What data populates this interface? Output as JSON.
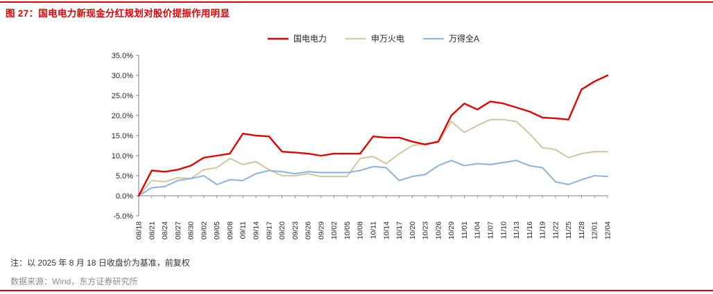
{
  "header": {
    "figure_label": "图 27"
  },
  "footer": {
    "note": "注：以 2025 年 8 月 18 日收盘价为基准，前复权",
    "source": "数据来源：Wind，东方证券研究所"
  },
  "colors": {
    "accent_red": "#e60000",
    "axis": "#7f7f7f",
    "tick_text": "#262626",
    "note_text": "#333333",
    "source_text": "#8c8c8c"
  },
  "chart_data": {
    "type": "line",
    "title": "图 27：国电电力新现金分红规划对股价提振作用明显",
    "xlabel": "",
    "ylabel": "",
    "ylim": [
      -5,
      35
    ],
    "ytick_step": 5,
    "ytick_format": "percent_1dp",
    "grid": false,
    "legend_position": "top",
    "categories": [
      "08/18",
      "08/21",
      "08/24",
      "08/27",
      "08/30",
      "09/02",
      "09/05",
      "09/08",
      "09/11",
      "09/14",
      "09/17",
      "09/20",
      "09/23",
      "09/26",
      "09/29",
      "10/02",
      "10/05",
      "10/08",
      "10/11",
      "10/14",
      "10/17",
      "10/20",
      "10/23",
      "10/26",
      "10/29",
      "11/01",
      "11/04",
      "11/07",
      "11/10",
      "11/13",
      "11/16",
      "11/19",
      "11/22",
      "11/25",
      "11/28",
      "12/01",
      "12/04"
    ],
    "series": [
      {
        "name": "国电电力",
        "key": "guodian-power",
        "color": "#e60000",
        "stroke_width": 2.4,
        "values": [
          0.0,
          6.3,
          6.0,
          6.5,
          7.5,
          9.5,
          10.0,
          10.5,
          15.5,
          15.0,
          14.8,
          11.0,
          10.8,
          10.5,
          10.0,
          10.5,
          10.5,
          10.5,
          14.8,
          14.5,
          14.5,
          13.5,
          12.8,
          13.5,
          20.0,
          23.0,
          21.5,
          23.5,
          23.0,
          22.0,
          21.0,
          19.5,
          19.3,
          19.0,
          26.5,
          28.5,
          30.0
        ]
      },
      {
        "name": "申万火电",
        "key": "sw-thermal-power",
        "color": "#d6c7a1",
        "stroke_width": 2.1,
        "values": [
          0.0,
          3.8,
          3.5,
          4.5,
          4.3,
          6.5,
          7.0,
          9.3,
          7.8,
          8.5,
          6.5,
          5.0,
          5.0,
          5.5,
          4.8,
          4.8,
          4.8,
          9.3,
          9.8,
          8.0,
          10.5,
          12.5,
          13.0,
          13.3,
          18.5,
          15.8,
          17.5,
          19.0,
          19.0,
          18.5,
          15.5,
          12.0,
          11.5,
          9.5,
          10.5,
          11.0,
          11.0
        ]
      },
      {
        "name": "万得全A",
        "key": "wind-all-a",
        "color": "#8db4e2",
        "stroke_width": 2.1,
        "values": [
          0.0,
          2.0,
          2.3,
          3.8,
          4.3,
          5.0,
          2.8,
          4.0,
          3.8,
          5.5,
          6.3,
          6.0,
          5.5,
          6.0,
          5.8,
          5.8,
          5.8,
          6.3,
          7.3,
          7.0,
          3.8,
          4.8,
          5.3,
          7.5,
          8.8,
          7.5,
          8.0,
          7.8,
          8.3,
          8.8,
          7.5,
          7.0,
          3.5,
          2.8,
          4.0,
          5.0,
          4.8
        ]
      }
    ]
  }
}
